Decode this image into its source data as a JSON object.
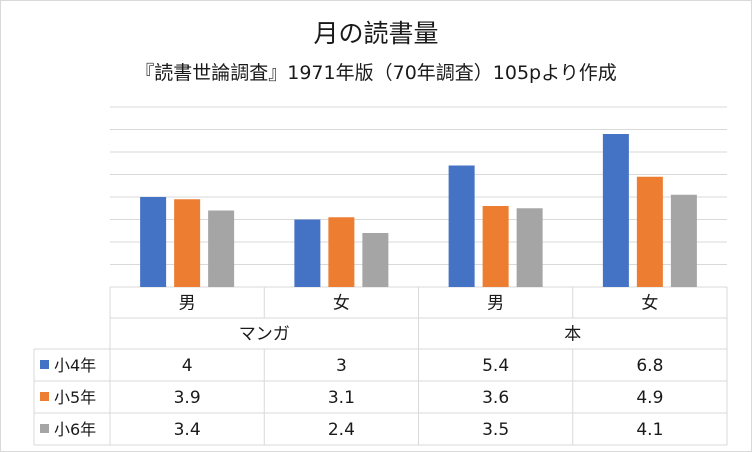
{
  "chart_data": {
    "type": "bar",
    "title": "月の読書量",
    "subtitle": "『読書世論調査』1971年版（70年調査）105pより作成",
    "groups": [
      "マンガ",
      "本"
    ],
    "categories": [
      "男",
      "女",
      "男",
      "女"
    ],
    "category_group": [
      0,
      0,
      1,
      1
    ],
    "series": [
      {
        "name": "小4年",
        "color": "#4472c4",
        "values": [
          4,
          3,
          5.4,
          6.8
        ],
        "labels": [
          "4",
          "3",
          "5.4",
          "6.8"
        ]
      },
      {
        "name": "小5年",
        "color": "#ed7d31",
        "values": [
          3.9,
          3.1,
          3.6,
          4.9
        ],
        "labels": [
          "3.9",
          "3.1",
          "3.6",
          "4.9"
        ]
      },
      {
        "name": "小6年",
        "color": "#a5a5a5",
        "values": [
          3.4,
          2.4,
          3.5,
          4.1
        ],
        "labels": [
          "3.4",
          "2.4",
          "3.5",
          "4.1"
        ]
      }
    ],
    "ylim": [
      0,
      8
    ],
    "grid": true,
    "data_table": true,
    "gridline_color": "#d9d9d9"
  }
}
